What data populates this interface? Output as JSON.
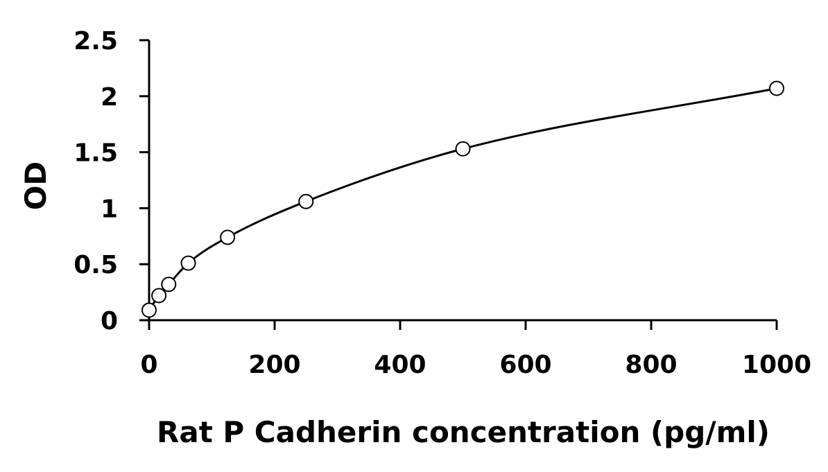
{
  "chart_data": {
    "type": "scatter",
    "xlabel": "Rat P Cadherin concentration (pg/ml)",
    "ylabel": "OD",
    "xlim": [
      0,
      1000
    ],
    "ylim": [
      0,
      2.5
    ],
    "x_ticks": [
      "0",
      "200",
      "400",
      "600",
      "800",
      "1000"
    ],
    "y_ticks": [
      "0",
      "0.5",
      "1",
      "1.5",
      "2",
      "2.5"
    ],
    "grid": false,
    "series": [
      {
        "x": [
          0,
          15.6,
          31.25,
          62.5,
          125,
          250,
          500,
          1000
        ],
        "y": [
          0.09,
          0.22,
          0.32,
          0.51,
          0.74,
          1.06,
          1.53,
          2.07
        ]
      }
    ],
    "fit_curve": true,
    "marker": "open-circle",
    "colors": {
      "line": "#000000",
      "marker_fill": "#ffffff",
      "marker_stroke": "#000000"
    }
  }
}
